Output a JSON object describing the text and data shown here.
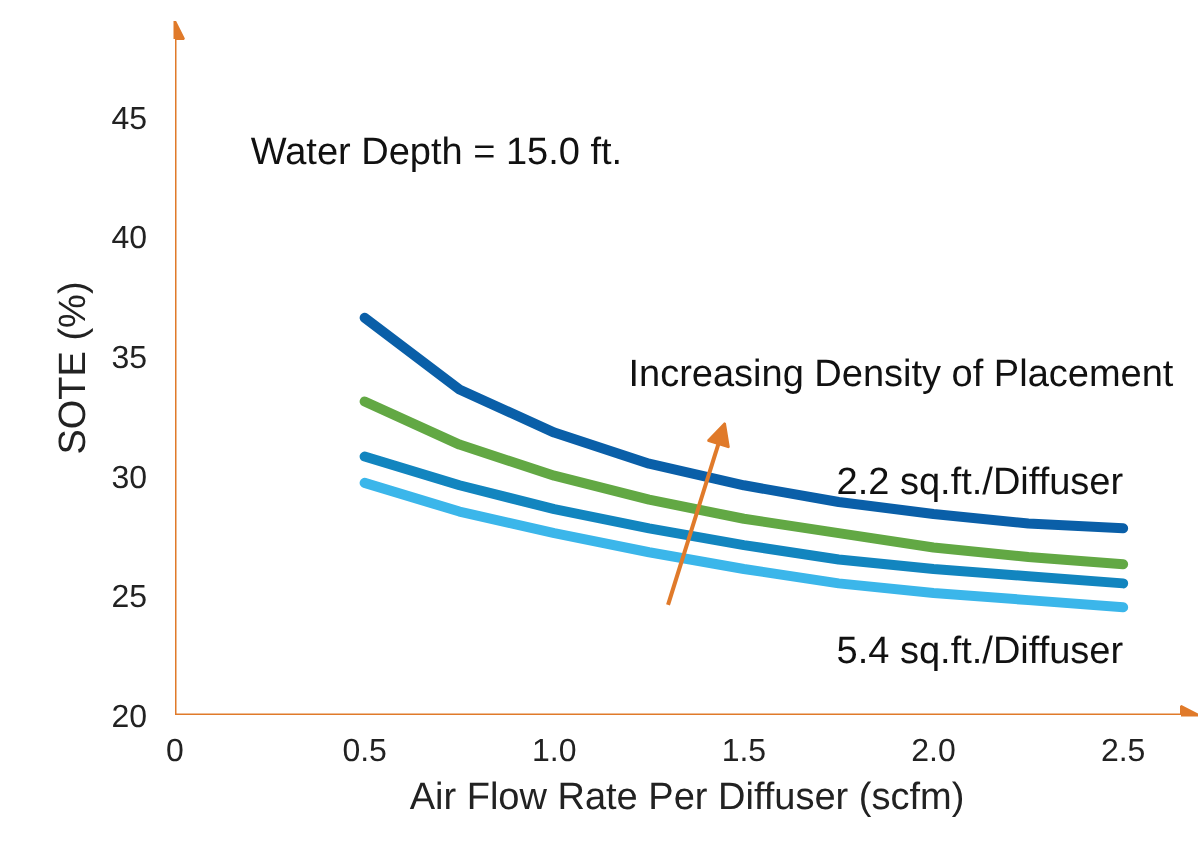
{
  "chart_data": {
    "type": "line",
    "xlabel": "Air Flow Rate Per Diffuser (scfm)",
    "ylabel": "SOTE (%)",
    "x": [
      0.5,
      0.75,
      1.0,
      1.25,
      1.5,
      1.75,
      2.0,
      2.25,
      2.5
    ],
    "series": [
      {
        "name": "2.2 sq.ft./Diffuser",
        "color": "#0a5fa8",
        "values": [
          36.6,
          33.6,
          31.8,
          30.5,
          29.6,
          28.9,
          28.4,
          28.0,
          27.8
        ]
      },
      {
        "color": "#62a844",
        "values": [
          33.1,
          31.3,
          30.0,
          29.0,
          28.2,
          27.6,
          27.0,
          26.6,
          26.3
        ]
      },
      {
        "color": "#1285bf",
        "values": [
          30.8,
          29.6,
          28.6,
          27.8,
          27.1,
          26.5,
          26.1,
          25.8,
          25.5
        ]
      },
      {
        "name": "5.4 sq.ft./Diffuser",
        "color": "#3bb6ea",
        "values": [
          29.7,
          28.5,
          27.6,
          26.8,
          26.1,
          25.5,
          25.1,
          24.8,
          24.5
        ]
      }
    ],
    "xlim": [
      0,
      2.7
    ],
    "ylim": [
      20,
      49
    ],
    "xticks": [
      0,
      0.5,
      {
        "value": 1.0,
        "label": "1.0"
      },
      1.5,
      {
        "value": 2.0,
        "label": "2.0"
      },
      2.5
    ],
    "yticks": [
      20,
      25,
      30,
      35,
      40,
      45
    ],
    "annotations": [
      "Water Depth = 15.0 ft.",
      "Increasing Density of Placement"
    ],
    "grid": false,
    "marker": "none",
    "line_style": "solid"
  }
}
